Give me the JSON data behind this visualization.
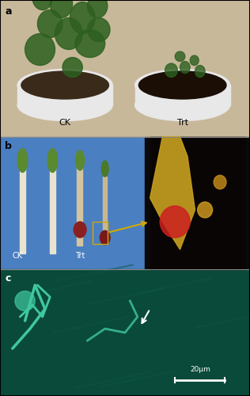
{
  "fig_width": 3.16,
  "fig_height": 5.0,
  "dpi": 100,
  "bg_color": "#ffffff",
  "border_color": "#000000",
  "panel_a": {
    "label": "a",
    "label_color": "#000000",
    "bg_color": "#c8b89a",
    "ck_label": "CK",
    "trt_label": "Trt",
    "label_text_color": "#000000",
    "pot_color": "#e8e8e8",
    "pot_left_color": "#d0d0d0",
    "soil_color": "#2a1a0a",
    "plant_color": "#2d5a1b",
    "ymin": 0.655,
    "ymax": 1.0
  },
  "panel_b": {
    "label": "b",
    "label_color": "#000000",
    "bg_left_color": "#4a7fc1",
    "bg_right_color": "#0a0a0a",
    "ck_label": "CK",
    "trt_label": "Trt",
    "label_text_color": "#ffffff",
    "arrow_color": "#d4a800",
    "box_color": "#d4a800",
    "ymin": 0.32,
    "ymax": 0.655
  },
  "panel_c": {
    "label": "c",
    "label_color": "#ffffff",
    "bg_color": "#0a4a3a",
    "arrow_color": "#ffffff",
    "scale_bar_color": "#ffffff",
    "scale_label": "20μm",
    "ymin": 0.0,
    "ymax": 0.32
  }
}
